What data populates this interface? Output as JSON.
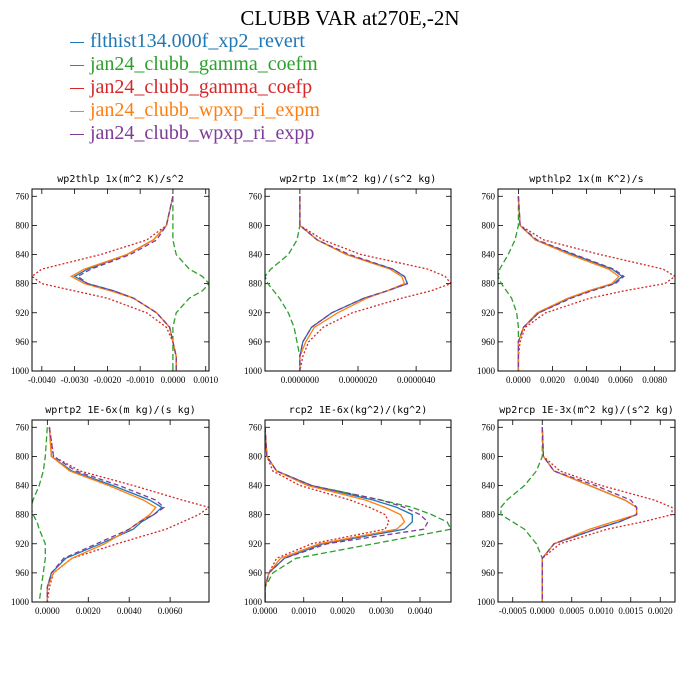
{
  "title": "CLUBB VAR at270E,-2N",
  "legend": [
    {
      "label": "flthist134.000f_xp2_revert",
      "color": "#1f77b4"
    },
    {
      "label": "jan24_clubb_gamma_coefm",
      "color": "#2ca02c"
    },
    {
      "label": "jan24_clubb_gamma_coefp",
      "color": "#d62728"
    },
    {
      "label": "jan24_clubb_wpxp_ri_expm",
      "color": "#ff7f0e"
    },
    {
      "label": "jan24_clubb_wpxp_ri_expp",
      "color": "#7d3c98"
    }
  ],
  "chart_data": [
    {
      "type": "line",
      "title": "wp2thlp   1x(m^2 K)/s^2",
      "xlim": [
        -0.0043,
        0.0011
      ],
      "ylim": [
        1000,
        750
      ],
      "xticks": [
        "-0.0040",
        "-0.0030",
        "-0.0020",
        "-0.0010",
        "0.0000",
        "0.0010"
      ],
      "xtick_values": [
        -0.004,
        -0.003,
        -0.002,
        -0.001,
        0.0,
        0.001
      ],
      "yticks": [
        760,
        800,
        840,
        880,
        920,
        960,
        1000
      ],
      "y": [
        760,
        800,
        820,
        840,
        860,
        870,
        880,
        890,
        900,
        920,
        940,
        960,
        980,
        1000
      ],
      "series": [
        {
          "values": [
            0.0,
            -0.0002,
            -0.0006,
            -0.0014,
            -0.0026,
            -0.003,
            -0.0026,
            -0.0018,
            -0.0012,
            -0.0005,
            -0.0001,
            0.0,
            0.0001,
            0.0001
          ],
          "color": "#1f77b4",
          "dash": "0"
        },
        {
          "values": [
            0.0,
            0.0,
            0.0,
            0.0001,
            0.0005,
            0.0009,
            0.0011,
            0.0009,
            0.0005,
            0.0001,
            0.0,
            0.0,
            0.0,
            0.0
          ],
          "color": "#2ca02c",
          "dash": "6,3"
        },
        {
          "values": [
            0.0,
            -0.0002,
            -0.0008,
            -0.0022,
            -0.004,
            -0.0043,
            -0.004,
            -0.003,
            -0.002,
            -0.0008,
            -0.0002,
            0.0,
            0.0001,
            0.0001
          ],
          "color": "#d62728",
          "dash": "2,2"
        },
        {
          "values": [
            0.0,
            -0.0002,
            -0.0006,
            -0.0014,
            -0.0027,
            -0.0031,
            -0.0027,
            -0.0019,
            -0.0012,
            -0.0005,
            -0.0001,
            0.0,
            0.0001,
            0.0001
          ],
          "color": "#ff7f0e",
          "dash": "0"
        },
        {
          "values": [
            0.0,
            -0.0002,
            -0.0005,
            -0.0013,
            -0.0025,
            -0.0029,
            -0.0026,
            -0.0018,
            -0.0012,
            -0.0005,
            -0.0001,
            0.0,
            0.0001,
            0.0001
          ],
          "color": "#7d3c98",
          "dash": "5,3"
        }
      ]
    },
    {
      "type": "line",
      "title": "wp2rtp   1x(m^2 kg)/(s^2 kg)",
      "xlim": [
        -1.2e-06,
        5.2e-06
      ],
      "ylim": [
        1000,
        750
      ],
      "xticks": [
        "0.0000000",
        "0.0000020",
        "0.0000040"
      ],
      "xtick_values": [
        0.0,
        2e-06,
        4e-06
      ],
      "yticks": [
        760,
        800,
        840,
        880,
        920,
        960,
        1000
      ],
      "y": [
        760,
        800,
        820,
        840,
        860,
        870,
        880,
        890,
        900,
        920,
        940,
        960,
        980,
        1000
      ],
      "series": [
        {
          "values": [
            0.0,
            0.0,
            6e-07,
            1.6e-06,
            3.2e-06,
            3.6e-06,
            3.7e-06,
            3e-06,
            2.2e-06,
            1.1e-06,
            4e-07,
            1e-07,
            0.0,
            0.0
          ],
          "color": "#1f77b4",
          "dash": "0"
        },
        {
          "values": [
            0.0,
            0.0,
            -1e-07,
            -4e-07,
            -1e-06,
            -1.2e-06,
            -1.1e-06,
            -9e-07,
            -7e-07,
            -4e-07,
            -2e-07,
            -1e-07,
            0.0,
            0.0
          ],
          "color": "#2ca02c",
          "dash": "6,3"
        },
        {
          "values": [
            0.0,
            0.0,
            8e-07,
            2.1e-06,
            4.4e-06,
            5e-06,
            5.2e-06,
            4.5e-06,
            3.5e-06,
            1.8e-06,
            8e-07,
            3e-07,
            1e-07,
            0.0
          ],
          "color": "#d62728",
          "dash": "2,2"
        },
        {
          "values": [
            0.0,
            0.0,
            6e-07,
            1.6e-06,
            3.1e-06,
            3.5e-06,
            3.6e-06,
            3e-06,
            2.3e-06,
            1.3e-06,
            5e-07,
            2e-07,
            0.0,
            0.0
          ],
          "color": "#ff7f0e",
          "dash": "0"
        },
        {
          "values": [
            0.0,
            0.0,
            6e-07,
            1.7e-06,
            3.2e-06,
            3.6e-06,
            3.7e-06,
            3e-06,
            2.2e-06,
            1.1e-06,
            4e-07,
            1e-07,
            0.0,
            0.0
          ],
          "color": "#7d3c98",
          "dash": "5,3"
        }
      ]
    },
    {
      "type": "line",
      "title": "wpthlp2   1x(m K^2)/s",
      "xlim": [
        -0.0012,
        0.0092
      ],
      "ylim": [
        1000,
        750
      ],
      "xticks": [
        "0.0000",
        "0.0020",
        "0.0040",
        "0.0060",
        "0.0080"
      ],
      "xtick_values": [
        0.0,
        0.002,
        0.004,
        0.006,
        0.008
      ],
      "yticks": [
        760,
        800,
        840,
        880,
        920,
        960,
        1000
      ],
      "y": [
        760,
        800,
        820,
        840,
        860,
        870,
        880,
        890,
        900,
        920,
        940,
        960,
        980,
        1000
      ],
      "series": [
        {
          "values": [
            0.0,
            0.0001,
            0.001,
            0.0032,
            0.0055,
            0.0061,
            0.0056,
            0.0042,
            0.003,
            0.0012,
            0.0003,
            0.0,
            0.0,
            0.0
          ],
          "color": "#1f77b4",
          "dash": "0"
        },
        {
          "values": [
            0.0,
            0.0,
            -0.0002,
            -0.0006,
            -0.0011,
            -0.0012,
            -0.001,
            -0.0007,
            -0.0004,
            -0.0001,
            0.0,
            0.0,
            0.0,
            0.0
          ],
          "color": "#2ca02c",
          "dash": "6,3"
        },
        {
          "values": [
            0.0,
            0.0001,
            0.0015,
            0.0048,
            0.0085,
            0.0092,
            0.0086,
            0.0062,
            0.0042,
            0.0016,
            0.0004,
            0.0001,
            0.0,
            0.0
          ],
          "color": "#d62728",
          "dash": "2,2"
        },
        {
          "values": [
            0.0,
            0.0001,
            0.001,
            0.003,
            0.0053,
            0.0059,
            0.0055,
            0.0041,
            0.0029,
            0.0011,
            0.0003,
            0.0,
            0.0,
            0.0
          ],
          "color": "#ff7f0e",
          "dash": "0"
        },
        {
          "values": [
            0.0,
            0.0001,
            0.0011,
            0.0033,
            0.0056,
            0.0062,
            0.0057,
            0.0043,
            0.0031,
            0.0012,
            0.0003,
            0.0,
            0.0,
            0.0
          ],
          "color": "#7d3c98",
          "dash": "5,3"
        }
      ]
    },
    {
      "type": "line",
      "title": "wprtp2   1E-6x(m kg)/(s kg)",
      "xlim": [
        -0.00075,
        0.0079
      ],
      "ylim": [
        1000,
        750
      ],
      "xticks": [
        "0.0000",
        "0.0020",
        "0.0040",
        "0.0060"
      ],
      "xtick_values": [
        0.0,
        0.002,
        0.004,
        0.006
      ],
      "yticks": [
        760,
        800,
        840,
        880,
        920,
        960,
        1000
      ],
      "y": [
        760,
        800,
        820,
        840,
        860,
        870,
        880,
        890,
        900,
        920,
        940,
        960,
        980,
        1000
      ],
      "series": [
        {
          "values": [
            0.0001,
            0.0002,
            0.0012,
            0.0032,
            0.005,
            0.0056,
            0.0052,
            0.0046,
            0.0042,
            0.0026,
            0.0009,
            0.0002,
            0.0,
            0.0
          ],
          "color": "#1f77b4",
          "dash": "0"
        },
        {
          "values": [
            0.0,
            -0.0001,
            -0.0002,
            -0.0004,
            -0.0007,
            -0.0008,
            -0.0007,
            -0.0005,
            -0.0004,
            -0.0001,
            -0.0001,
            -0.0002,
            -0.0003,
            -0.0004
          ],
          "color": "#2ca02c",
          "dash": "6,3"
        },
        {
          "values": [
            0.0001,
            0.0003,
            0.0016,
            0.0042,
            0.0066,
            0.0079,
            0.0074,
            0.0066,
            0.0058,
            0.0034,
            0.0012,
            0.0003,
            0.0001,
            0.0
          ],
          "color": "#d62728",
          "dash": "2,2"
        },
        {
          "values": [
            0.0001,
            0.0002,
            0.0011,
            0.003,
            0.0047,
            0.0053,
            0.005,
            0.0045,
            0.004,
            0.0028,
            0.0012,
            0.0003,
            0.0,
            0.0
          ],
          "color": "#ff7f0e",
          "dash": "0"
        },
        {
          "values": [
            0.0001,
            0.0003,
            0.0014,
            0.0035,
            0.0053,
            0.0057,
            0.0052,
            0.0045,
            0.004,
            0.0024,
            0.0008,
            0.0002,
            0.0,
            0.0
          ],
          "color": "#7d3c98",
          "dash": "5,3"
        }
      ]
    },
    {
      "type": "line",
      "title": "rcp2   1E-6x(kg^2)/(kg^2)",
      "xlim": [
        0.0,
        0.0048
      ],
      "ylim": [
        1000,
        750
      ],
      "xticks": [
        "0.0000",
        "0.0010",
        "0.0020",
        "0.0030",
        "0.0040"
      ],
      "xtick_values": [
        0.0,
        0.001,
        0.002,
        0.003,
        0.004
      ],
      "yticks": [
        760,
        800,
        840,
        880,
        920,
        960,
        1000
      ],
      "y": [
        760,
        800,
        820,
        840,
        860,
        870,
        880,
        890,
        900,
        920,
        940,
        960,
        980,
        1000
      ],
      "series": [
        {
          "values": [
            0.0,
            5e-05,
            0.0003,
            0.0012,
            0.0028,
            0.0034,
            0.0038,
            0.0038,
            0.0036,
            0.0015,
            0.0005,
            0.0001,
            0.0,
            0.0
          ],
          "color": "#1f77b4",
          "dash": "0"
        },
        {
          "values": [
            0.0,
            5e-05,
            0.0003,
            0.0012,
            0.003,
            0.0038,
            0.0043,
            0.0047,
            0.0048,
            0.0028,
            0.0008,
            0.0002,
            0.0,
            0.0
          ],
          "color": "#2ca02c",
          "dash": "6,3"
        },
        {
          "values": [
            0.0,
            5e-05,
            0.0002,
            0.0009,
            0.0022,
            0.0027,
            0.0031,
            0.0032,
            0.0031,
            0.0012,
            0.0003,
            0.0001,
            0.0,
            0.0
          ],
          "color": "#d62728",
          "dash": "2,2"
        },
        {
          "values": [
            0.0,
            5e-05,
            0.0003,
            0.0011,
            0.0026,
            0.0031,
            0.0035,
            0.0036,
            0.0034,
            0.0014,
            0.0004,
            0.0001,
            0.0,
            0.0
          ],
          "color": "#ff7f0e",
          "dash": "0"
        },
        {
          "values": [
            0.0,
            5e-05,
            0.0003,
            0.0012,
            0.003,
            0.0036,
            0.004,
            0.0042,
            0.0041,
            0.0016,
            0.0005,
            0.0001,
            0.0,
            0.0
          ],
          "color": "#7d3c98",
          "dash": "5,3"
        }
      ]
    },
    {
      "type": "line",
      "title": "wp2rcp   1E-3x(m^2 kg)/(s^2 kg)",
      "xlim": [
        -0.00075,
        0.00225
      ],
      "ylim": [
        1000,
        750
      ],
      "xticks": [
        "-0.0005",
        "0.0000",
        "0.0005",
        "0.0010",
        "0.0015",
        "0.0020"
      ],
      "xtick_values": [
        -0.0005,
        0.0,
        0.0005,
        0.001,
        0.0015,
        0.002
      ],
      "yticks": [
        760,
        800,
        840,
        880,
        920,
        960,
        1000
      ],
      "y": [
        760,
        800,
        820,
        840,
        860,
        870,
        880,
        890,
        900,
        920,
        940,
        960,
        980,
        1000
      ],
      "series": [
        {
          "values": [
            0.0,
            2e-05,
            0.0002,
            0.0008,
            0.0014,
            0.0016,
            0.0016,
            0.0013,
            0.0009,
            0.0002,
            0.0,
            0.0,
            0.0,
            0.0
          ],
          "color": "#1f77b4",
          "dash": "0"
        },
        {
          "values": [
            0.0,
            0.0,
            -0.0001,
            -0.0003,
            -0.0006,
            -0.0007,
            -0.0007,
            -0.0005,
            -0.0003,
            -0.0001,
            0.0,
            0.0,
            0.0,
            0.0
          ],
          "color": "#2ca02c",
          "dash": "6,3"
        },
        {
          "values": [
            0.0,
            2e-05,
            0.0003,
            0.001,
            0.0019,
            0.0022,
            0.0022,
            0.0017,
            0.0011,
            0.0003,
            0.0,
            0.0,
            0.0,
            0.0
          ],
          "color": "#d62728",
          "dash": "2,2"
        },
        {
          "values": [
            0.0,
            2e-05,
            0.0002,
            0.0008,
            0.0014,
            0.0016,
            0.0016,
            0.0012,
            0.0008,
            0.0002,
            0.0,
            0.0,
            0.0,
            0.0
          ],
          "color": "#ff7f0e",
          "dash": "0"
        },
        {
          "values": [
            0.0,
            2e-05,
            0.0002,
            0.0009,
            0.0015,
            0.0016,
            0.0016,
            0.0013,
            0.0009,
            0.0002,
            0.0,
            0.0,
            0.0,
            0.0
          ],
          "color": "#7d3c98",
          "dash": "5,3"
        }
      ]
    }
  ]
}
